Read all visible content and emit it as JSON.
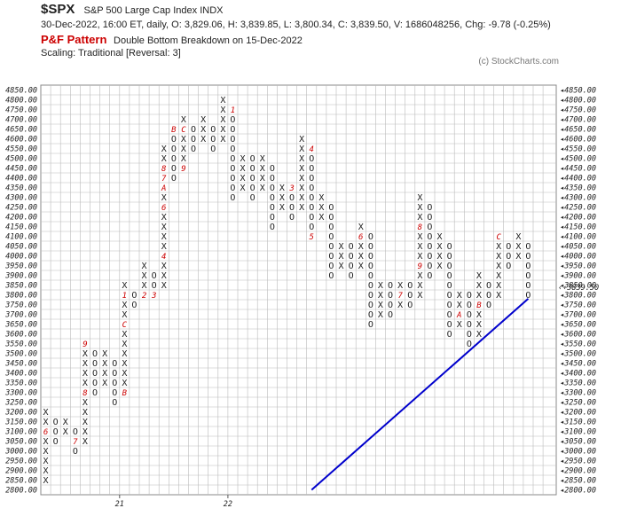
{
  "header": {
    "symbol": "$SPX",
    "name": "S&P 500 Large Cap Index  INDX",
    "quote": "30-Dec-2022, 16:00 ET, daily, O: 3,829.06, H: 3,839.85, L: 3,800.34, C: 3,839.50, V: 1686048256, Chg: -9.78 (-0.25%)",
    "pattern_label": "P&F Pattern",
    "pattern_desc": "Double Bottom Breakdown on 15-Dec-2022",
    "scaling": "Scaling: Traditional [Reversal: 3]",
    "copyright": "(c) StockCharts.com"
  },
  "colors": {
    "x_mark": "#222222",
    "o_mark": "#222222",
    "month_mark": "#cc0000",
    "grid": "#bbbbbb",
    "trendline": "#0000cc",
    "last_price": "#cc0000"
  },
  "chart_data": {
    "type": "point-and-figure",
    "box_size": 50,
    "reversal": 3,
    "y_min": 2800,
    "y_max": 4850,
    "grid": true,
    "x_tick_labels": [
      {
        "label": "21",
        "column": 8
      },
      {
        "label": "22",
        "column": 19
      }
    ],
    "last_price_label": "3839.50",
    "columns": [
      {
        "type": "X",
        "low": 2850,
        "high": 3200,
        "marks": [
          {
            "price": 3100,
            "char": "6"
          }
        ]
      },
      {
        "type": "O",
        "low": 3050,
        "high": 3150
      },
      {
        "type": "X",
        "low": 3100,
        "high": 3150
      },
      {
        "type": "O",
        "low": 3000,
        "high": 3100,
        "marks": [
          {
            "price": 3050,
            "char": "7"
          }
        ]
      },
      {
        "type": "X",
        "low": 3050,
        "high": 3550,
        "marks": [
          {
            "price": 3300,
            "char": "8"
          },
          {
            "price": 3550,
            "char": "9"
          }
        ]
      },
      {
        "type": "O",
        "low": 3300,
        "high": 3500
      },
      {
        "type": "X",
        "low": 3350,
        "high": 3500,
        "marks": [
          {
            "price": 3300,
            "char": "A"
          }
        ]
      },
      {
        "type": "O",
        "low": 3250,
        "high": 3450
      },
      {
        "type": "X",
        "low": 3300,
        "high": 3850,
        "marks": [
          {
            "price": 3300,
            "char": "B"
          },
          {
            "price": 3650,
            "char": "C"
          },
          {
            "price": 3800,
            "char": "1"
          }
        ]
      },
      {
        "type": "O",
        "low": 3750,
        "high": 3800
      },
      {
        "type": "X",
        "low": 3800,
        "high": 3950,
        "marks": [
          {
            "price": 3800,
            "char": "2"
          }
        ]
      },
      {
        "type": "O",
        "low": 3800,
        "high": 3900,
        "marks": [
          {
            "price": 3800,
            "char": "3"
          }
        ]
      },
      {
        "type": "X",
        "low": 3850,
        "high": 4550,
        "marks": [
          {
            "price": 4000,
            "char": "4"
          },
          {
            "price": 4250,
            "char": "6"
          },
          {
            "price": 4400,
            "char": "7"
          },
          {
            "price": 4450,
            "char": "8"
          },
          {
            "price": 4350,
            "char": "A"
          }
        ]
      },
      {
        "type": "O",
        "low": 4400,
        "high": 4650,
        "marks": [
          {
            "price": 4650,
            "char": "B"
          }
        ]
      },
      {
        "type": "X",
        "low": 4450,
        "high": 4700,
        "marks": [
          {
            "price": 4450,
            "char": "9"
          },
          {
            "price": 4650,
            "char": "C"
          }
        ]
      },
      {
        "type": "O",
        "low": 4550,
        "high": 4650
      },
      {
        "type": "X",
        "low": 4600,
        "high": 4700
      },
      {
        "type": "O",
        "low": 4550,
        "high": 4650
      },
      {
        "type": "X",
        "low": 4600,
        "high": 4800
      },
      {
        "type": "O",
        "low": 4300,
        "high": 4750,
        "marks": [
          {
            "price": 4750,
            "char": "1"
          }
        ]
      },
      {
        "type": "X",
        "low": 4350,
        "high": 4500
      },
      {
        "type": "O",
        "low": 4300,
        "high": 4500,
        "marks": [
          {
            "price": 4550,
            "char": "2"
          }
        ]
      },
      {
        "type": "X",
        "low": 4350,
        "high": 4500
      },
      {
        "type": "O",
        "low": 4150,
        "high": 4450
      },
      {
        "type": "X",
        "low": 4250,
        "high": 4350
      },
      {
        "type": "O",
        "low": 4200,
        "high": 4350,
        "marks": [
          {
            "price": 4350,
            "char": "3"
          }
        ]
      },
      {
        "type": "X",
        "low": 4250,
        "high": 4600
      },
      {
        "type": "O",
        "low": 4100,
        "high": 4550,
        "marks": [
          {
            "price": 4550,
            "char": "4"
          },
          {
            "price": 4100,
            "char": "5"
          }
        ]
      },
      {
        "type": "X",
        "low": 4200,
        "high": 4300
      },
      {
        "type": "O",
        "low": 3900,
        "high": 4250
      },
      {
        "type": "X",
        "low": 3950,
        "high": 4050
      },
      {
        "type": "O",
        "low": 3900,
        "high": 4050
      },
      {
        "type": "X",
        "low": 3950,
        "high": 4150,
        "marks": [
          {
            "price": 4100,
            "char": "6"
          }
        ]
      },
      {
        "type": "O",
        "low": 3650,
        "high": 4100
      },
      {
        "type": "X",
        "low": 3700,
        "high": 3850
      },
      {
        "type": "O",
        "low": 3700,
        "high": 3850
      },
      {
        "type": "X",
        "low": 3750,
        "high": 3850,
        "marks": [
          {
            "price": 3800,
            "char": "7"
          }
        ]
      },
      {
        "type": "O",
        "low": 3750,
        "high": 3850
      },
      {
        "type": "X",
        "low": 3800,
        "high": 4300,
        "marks": [
          {
            "price": 4150,
            "char": "8"
          },
          {
            "price": 3950,
            "char": "9"
          }
        ]
      },
      {
        "type": "O",
        "low": 3900,
        "high": 4250
      },
      {
        "type": "X",
        "low": 3950,
        "high": 4100
      },
      {
        "type": "O",
        "low": 3600,
        "high": 4050
      },
      {
        "type": "X",
        "low": 3650,
        "high": 3800,
        "marks": [
          {
            "price": 3700,
            "char": "A"
          }
        ]
      },
      {
        "type": "O",
        "low": 3550,
        "high": 3800
      },
      {
        "type": "X",
        "low": 3600,
        "high": 3900,
        "marks": [
          {
            "price": 3750,
            "char": "B"
          }
        ]
      },
      {
        "type": "O",
        "low": 3750,
        "high": 3850
      },
      {
        "type": "X",
        "low": 3800,
        "high": 4100,
        "marks": [
          {
            "price": 4100,
            "char": "C"
          }
        ]
      },
      {
        "type": "O",
        "low": 3950,
        "high": 4050
      },
      {
        "type": "X",
        "low": 4000,
        "high": 4100
      },
      {
        "type": "O",
        "low": 3800,
        "high": 4050
      }
    ],
    "trendline": {
      "from": {
        "column": 27,
        "price": 2800
      },
      "to": {
        "column": 49,
        "price": 3780
      }
    }
  }
}
